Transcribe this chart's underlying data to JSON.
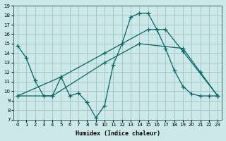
{
  "xlabel": "Humidex (Indice chaleur)",
  "bg_color": "#cce8e8",
  "grid_color": "#99bbbb",
  "line_color": "#006666",
  "xlim": [
    -0.5,
    23.5
  ],
  "ylim": [
    7,
    19
  ],
  "xticks": [
    0,
    1,
    2,
    3,
    4,
    5,
    6,
    7,
    8,
    9,
    10,
    11,
    12,
    13,
    14,
    15,
    16,
    17,
    18,
    19,
    20,
    21,
    22,
    23
  ],
  "yticks": [
    7,
    8,
    9,
    10,
    11,
    12,
    13,
    14,
    15,
    16,
    17,
    18,
    19
  ],
  "line1_x": [
    0,
    1,
    2,
    3,
    4,
    5,
    6,
    7,
    8,
    9,
    10,
    11,
    12,
    13,
    14,
    15,
    16,
    17,
    18,
    19,
    20,
    21,
    22,
    23
  ],
  "line1_y": [
    14.8,
    13.5,
    11.1,
    9.5,
    9.5,
    11.5,
    9.5,
    9.8,
    8.8,
    7.2,
    8.5,
    12.8,
    15.0,
    17.8,
    18.2,
    18.2,
    16.5,
    14.5,
    12.2,
    10.5,
    9.7,
    9.5,
    9.5,
    9.5
  ],
  "line2_x": [
    0,
    4,
    10,
    14,
    19,
    21,
    23
  ],
  "line2_y": [
    9.5,
    9.5,
    13.0,
    15.0,
    14.5,
    12.0,
    9.5
  ],
  "line3_x": [
    0,
    5,
    10,
    15,
    17,
    19,
    23
  ],
  "line3_y": [
    9.5,
    11.5,
    14.0,
    16.5,
    16.5,
    14.2,
    9.5
  ]
}
